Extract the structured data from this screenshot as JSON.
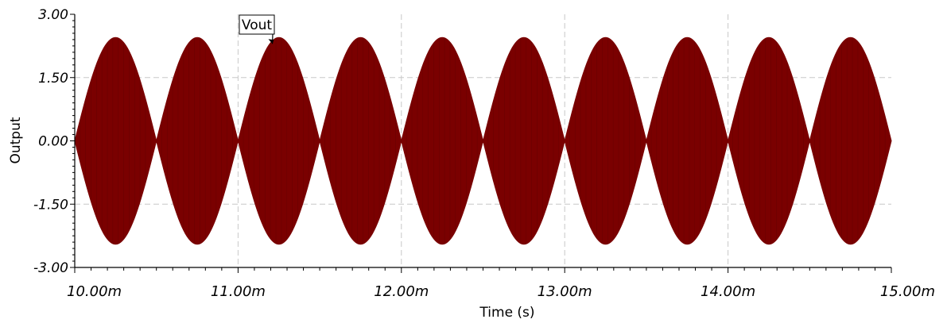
{
  "chart_data": {
    "type": "line",
    "title": "",
    "xlabel": "Time (s)",
    "ylabel": "Output",
    "xlim": [
      0.01,
      0.015
    ],
    "ylim": [
      -3.0,
      3.0
    ],
    "x_ticks": [
      {
        "value": 0.01,
        "label": "10.00m"
      },
      {
        "value": 0.011,
        "label": "11.00m"
      },
      {
        "value": 0.012,
        "label": "12.00m"
      },
      {
        "value": 0.013,
        "label": "13.00m"
      },
      {
        "value": 0.014,
        "label": "14.00m"
      },
      {
        "value": 0.015,
        "label": "15.00m"
      }
    ],
    "y_ticks": [
      {
        "value": 3.0,
        "label": "3.00"
      },
      {
        "value": 1.5,
        "label": "1.50"
      },
      {
        "value": 0.0,
        "label": "0.00"
      },
      {
        "value": -1.5,
        "label": "-1.50"
      },
      {
        "value": -3.0,
        "label": "-3.00"
      }
    ],
    "grid": true,
    "legend": "none",
    "series": [
      {
        "name": "Vout",
        "color": "#7a0000",
        "waveform": "amplitude-modulated (double-sideband suppressed carrier); the carrier is too dense to resolve, so the trace fills the area between +envelope and -envelope",
        "envelope_x": [
          0.01,
          0.01025,
          0.0105,
          0.01075,
          0.011,
          0.01125,
          0.0115,
          0.01175,
          0.012,
          0.01225,
          0.0125,
          0.01275,
          0.013,
          0.01325,
          0.0135,
          0.01375,
          0.014,
          0.01425,
          0.0145,
          0.01475,
          0.015
        ],
        "envelope_y": [
          0.0,
          2.45,
          0.0,
          2.45,
          0.0,
          2.45,
          0.0,
          2.45,
          0.0,
          2.45,
          0.0,
          2.45,
          0.0,
          2.45,
          0.0,
          2.45,
          0.0,
          2.45,
          0.0,
          2.45,
          0.0
        ]
      }
    ],
    "annotations": [
      {
        "text": "Vout",
        "target_x": 0.01121,
        "target_y": 2.3
      }
    ],
    "colors": {
      "trace": "#7a0000",
      "grid": "#c8c8c8",
      "axis": "#000000"
    }
  }
}
